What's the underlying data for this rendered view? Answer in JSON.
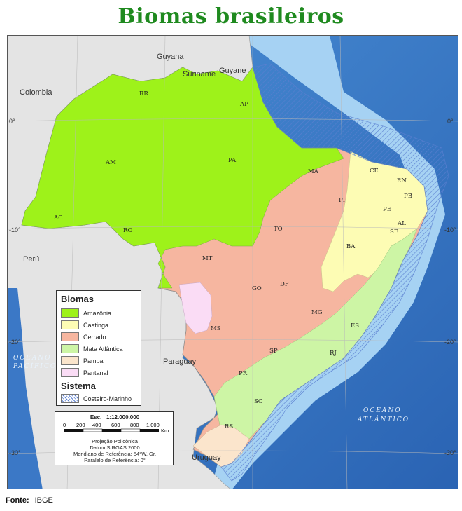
{
  "title": "Biomas brasileiros",
  "source": {
    "label": "Fonte:",
    "value": "IBGE"
  },
  "colors": {
    "amazonia": "#9ef21a",
    "caatinga": "#fdfcb4",
    "cerrado": "#f6b6a0",
    "mata_atlantica": "#cdf5a5",
    "pampa": "#fbe5cc",
    "pantanal": "#fadcf5",
    "ocean_deep": "#2d6fbf",
    "ocean_shelf": "#9ecbf0",
    "land_neighbors": "#e6e6e6"
  },
  "legend": {
    "biomas_title": "Biomas",
    "biomas": [
      {
        "label": "Amazônia",
        "color": "#9ef21a"
      },
      {
        "label": "Caatinga",
        "color": "#fdfcb4"
      },
      {
        "label": "Cerrado",
        "color": "#f6b6a0"
      },
      {
        "label": "Mata Atlântica",
        "color": "#cdf5a5"
      },
      {
        "label": "Pampa",
        "color": "#fbe5cc"
      },
      {
        "label": "Pantanal",
        "color": "#fadcf5"
      }
    ],
    "sistema_title": "Sistema",
    "sistema": [
      {
        "label": "Costeiro-Marinho",
        "pattern": "hatched"
      }
    ]
  },
  "scale": {
    "esc": "Esc.",
    "ratio": "1:12.000.000",
    "ticks": [
      "0",
      "200",
      "400",
      "600",
      "800",
      "1.000"
    ],
    "unit": "Km",
    "lines": [
      "Projeção Policônica",
      "Datum SIRGAS 2000",
      "Meridiano de Referência: 54°W. Gr.",
      "Paralelo de Referência: 0°"
    ]
  },
  "countries": [
    "Guyana",
    "Suriname",
    "Guyane",
    "Colombia",
    "Perú",
    "Paraguay",
    "Uruguay"
  ],
  "states": [
    "RR",
    "AP",
    "AM",
    "PA",
    "MA",
    "CE",
    "RN",
    "PB",
    "PI",
    "PE",
    "AL",
    "SE",
    "AC",
    "RO",
    "TO",
    "BA",
    "MT",
    "GO",
    "DF",
    "MG",
    "ES",
    "MS",
    "SP",
    "RJ",
    "PR",
    "SC",
    "RS"
  ],
  "coords_left": [
    "0°",
    "-10°",
    "-20°",
    "-30°"
  ],
  "coords_right": [
    "0°",
    "-10°",
    "-20°",
    "-30°"
  ],
  "oceans": {
    "pacific": [
      "OCEANO",
      "PACÍFICO"
    ],
    "atlantic": [
      "OCEANO",
      "ATLÂNTICO"
    ]
  }
}
